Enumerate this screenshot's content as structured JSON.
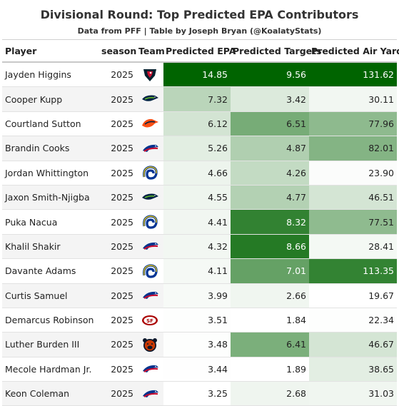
{
  "title": "Divisional Round: Top Predicted EPA Contributors",
  "subtitle": "Data from PFF | Table by Joseph Bryan (@KoalatyStats)",
  "colors": {
    "max": "#006400",
    "min": "#ffffff"
  },
  "chart_data": {
    "type": "table",
    "columns": [
      "Player",
      "season",
      "Team",
      "Predicted EPA",
      "Predicted Targets",
      "Predicted Air Yards"
    ],
    "rows": [
      {
        "player": "Jayden Higgins",
        "season": "2025",
        "team": "texans-logo",
        "epa": "14.85",
        "targets": "9.56",
        "air_yards": "131.62"
      },
      {
        "player": "Cooper Kupp",
        "season": "2025",
        "team": "seahawks-logo",
        "epa": "7.32",
        "targets": "3.42",
        "air_yards": "30.11"
      },
      {
        "player": "Courtland Sutton",
        "season": "2025",
        "team": "broncos-logo",
        "epa": "6.12",
        "targets": "6.51",
        "air_yards": "77.96"
      },
      {
        "player": "Brandin Cooks",
        "season": "2025",
        "team": "bills-logo",
        "epa": "5.26",
        "targets": "4.87",
        "air_yards": "82.01"
      },
      {
        "player": "Jordan Whittington",
        "season": "2025",
        "team": "rams-logo",
        "epa": "4.66",
        "targets": "4.26",
        "air_yards": "23.90"
      },
      {
        "player": "Jaxon Smith-Njigba",
        "season": "2025",
        "team": "seahawks-logo",
        "epa": "4.55",
        "targets": "4.77",
        "air_yards": "46.51"
      },
      {
        "player": "Puka Nacua",
        "season": "2025",
        "team": "rams-logo",
        "epa": "4.41",
        "targets": "8.32",
        "air_yards": "77.51"
      },
      {
        "player": "Khalil Shakir",
        "season": "2025",
        "team": "bills-logo",
        "epa": "4.32",
        "targets": "8.66",
        "air_yards": "28.41"
      },
      {
        "player": "Davante Adams",
        "season": "2025",
        "team": "rams-logo",
        "epa": "4.11",
        "targets": "7.01",
        "air_yards": "113.35"
      },
      {
        "player": "Curtis Samuel",
        "season": "2025",
        "team": "bills-logo",
        "epa": "3.99",
        "targets": "2.66",
        "air_yards": "19.67"
      },
      {
        "player": "Demarcus Robinson",
        "season": "2025",
        "team": "49ers-logo",
        "epa": "3.51",
        "targets": "1.84",
        "air_yards": "22.34"
      },
      {
        "player": "Luther Burden III",
        "season": "2025",
        "team": "bears-logo",
        "epa": "3.48",
        "targets": "6.41",
        "air_yards": "46.67"
      },
      {
        "player": "Mecole Hardman Jr.",
        "season": "2025",
        "team": "bills-logo",
        "epa": "3.44",
        "targets": "1.89",
        "air_yards": "38.65"
      },
      {
        "player": "Keon Coleman",
        "season": "2025",
        "team": "bills-logo",
        "epa": "3.25",
        "targets": "2.68",
        "air_yards": "31.03"
      }
    ]
  }
}
